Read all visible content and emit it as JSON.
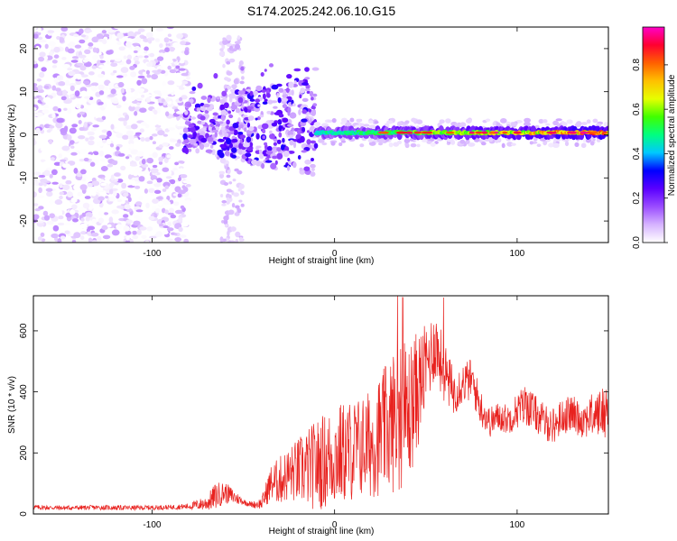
{
  "figure_title": "S174.2025.242.06.10.G15",
  "colors": {
    "snr_line": "#e8221f",
    "axis": "#000000",
    "background": "#ffffff"
  },
  "chart_data": [
    {
      "type": "heatmap",
      "name": "spectrogram",
      "xlabel": "Height of straight line (km)",
      "ylabel": "Frequency (Hz)",
      "xlim": [
        -165,
        150
      ],
      "ylim": [
        -25,
        25
      ],
      "xticks": [
        -100,
        0,
        100
      ],
      "yticks": [
        -20,
        -10,
        0,
        10,
        20
      ],
      "colorbar": {
        "label": "Normalized spectral amplitude",
        "range": [
          0,
          0.97
        ],
        "ticks": [
          0.0,
          0.2,
          0.4,
          0.6,
          0.8
        ],
        "colormap": [
          "#ffffff",
          "#d6b3ff",
          "#9a4cff",
          "#5a00ff",
          "#0000ff",
          "#00c8ff",
          "#00ff80",
          "#40ff00",
          "#e6ff00",
          "#ffc000",
          "#ff6000",
          "#ff0030",
          "#ff00c8"
        ]
      },
      "features": [
        {
          "region": "noise",
          "x_range": [
            -165,
            -80
          ],
          "freq_range": [
            -25,
            25
          ],
          "amplitude": [
            0.0,
            0.12
          ]
        },
        {
          "region": "onset",
          "x_range": [
            -82,
            -10
          ],
          "freq_range": [
            -8,
            22
          ],
          "amplitude": [
            0.05,
            0.3
          ]
        },
        {
          "region": "tone",
          "x_range": [
            -10,
            150
          ],
          "center_freq": 0.5,
          "amplitude": [
            0.3,
            0.9
          ]
        }
      ]
    },
    {
      "type": "line",
      "name": "snr",
      "xlabel": "Height of straight line (km)",
      "ylabel": "SNR (10 * v/v)",
      "xlim": [
        -165,
        150
      ],
      "ylim": [
        0,
        715
      ],
      "xticks": [
        -100,
        0,
        100
      ],
      "yticks": [
        0,
        200,
        400,
        600
      ],
      "series": [
        {
          "name": "SNR",
          "x": [
            -165,
            -150,
            -130,
            -110,
            -90,
            -80,
            -70,
            -65,
            -60,
            -55,
            -50,
            -45,
            -40,
            -35,
            -30,
            -25,
            -20,
            -15,
            -10,
            -5,
            0,
            5,
            10,
            15,
            20,
            25,
            30,
            35,
            40,
            45,
            50,
            55,
            60,
            65,
            70,
            75,
            80,
            85,
            90,
            95,
            100,
            105,
            110,
            115,
            120,
            125,
            130,
            135,
            140,
            145,
            150
          ],
          "y": [
            22,
            20,
            21,
            20,
            22,
            25,
            35,
            60,
            70,
            55,
            40,
            30,
            35,
            100,
            110,
            130,
            140,
            150,
            160,
            175,
            190,
            200,
            210,
            220,
            230,
            260,
            290,
            330,
            320,
            400,
            480,
            560,
            470,
            400,
            430,
            440,
            350,
            300,
            320,
            310,
            340,
            360,
            330,
            300,
            290,
            320,
            330,
            310,
            320,
            330,
            340
          ],
          "amplitude": [
            8,
            8,
            8,
            8,
            8,
            10,
            25,
            45,
            35,
            25,
            10,
            10,
            20,
            60,
            80,
            90,
            110,
            130,
            150,
            160,
            170,
            170,
            170,
            170,
            180,
            200,
            220,
            260,
            240,
            200,
            140,
            120,
            100,
            80,
            70,
            70,
            60,
            50,
            50,
            50,
            60,
            70,
            60,
            60,
            60,
            60,
            60,
            60,
            70,
            80,
            90
          ]
        }
      ]
    }
  ]
}
